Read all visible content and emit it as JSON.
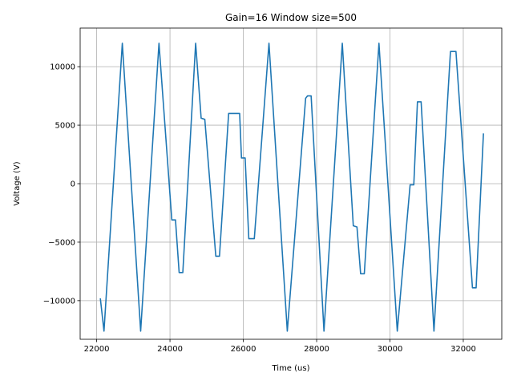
{
  "chart_data": {
    "type": "line",
    "title": "Gain=16 Window size=500",
    "xlabel": "Time (us)",
    "ylabel": "Voltage (V)",
    "xlim": [
      21550,
      33050
    ],
    "ylim": [
      -13300,
      13300
    ],
    "xticks": [
      22000,
      24000,
      26000,
      28000,
      30000,
      32000
    ],
    "xtick_labels": [
      "22000",
      "24000",
      "26000",
      "28000",
      "30000",
      "32000"
    ],
    "yticks": [
      -10000,
      -5000,
      0,
      5000,
      10000
    ],
    "ytick_labels": [
      "−10000",
      "−5000",
      "0",
      "5000",
      "10000"
    ],
    "grid": true,
    "color": "#1f77b4",
    "series": [
      {
        "x": [
          22100,
          22200,
          22700,
          23200,
          23700,
          24050,
          24150,
          24250,
          24350,
          24700,
          24850,
          24950,
          25250,
          25350,
          25600,
          25900,
          25950,
          26050,
          26150,
          26300,
          26700,
          27200,
          27700,
          27750,
          27850,
          28200,
          28700,
          29000,
          29100,
          29200,
          29300,
          29700,
          30200,
          30550,
          30650,
          30750,
          30850,
          31200,
          31650,
          31800,
          32250,
          32350,
          32550
        ],
        "y": [
          -9800,
          -12600,
          12000,
          -12600,
          12000,
          -3100,
          -3100,
          -7600,
          -7600,
          12000,
          5600,
          5500,
          -6200,
          -6200,
          6000,
          6000,
          2200,
          2200,
          -4700,
          -4700,
          12000,
          -12600,
          7300,
          7500,
          7500,
          -12600,
          12000,
          -3600,
          -3700,
          -7700,
          -7700,
          12000,
          -12600,
          -100,
          -100,
          7000,
          7000,
          -12600,
          11300,
          11300,
          -8900,
          -8900,
          4300
        ]
      }
    ]
  }
}
